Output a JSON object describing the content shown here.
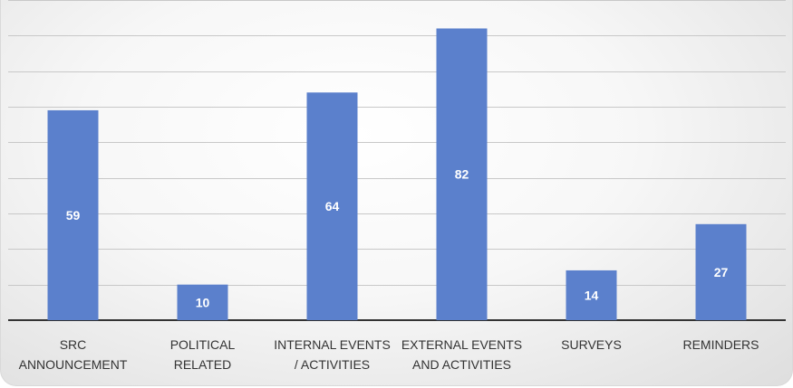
{
  "chart_data": {
    "type": "bar",
    "categories": [
      [
        "SRC",
        "ANNOUNCEMENT"
      ],
      [
        "POLITICAL",
        "RELATED"
      ],
      [
        "INTERNAL EVENTS",
        "/ ACTIVITIES"
      ],
      [
        "EXTERNAL EVENTS",
        "AND ACTIVITIES"
      ],
      [
        "SURVEYS"
      ],
      [
        "REMINDERS"
      ]
    ],
    "values": [
      59,
      10,
      64,
      82,
      14,
      27
    ],
    "data_labels": [
      "59",
      "10",
      "64",
      "82",
      "14",
      "27"
    ],
    "ylim": [
      0,
      90
    ],
    "grid": true,
    "colors": {
      "bar": "#5b80cc",
      "label": "#ffffff"
    }
  }
}
